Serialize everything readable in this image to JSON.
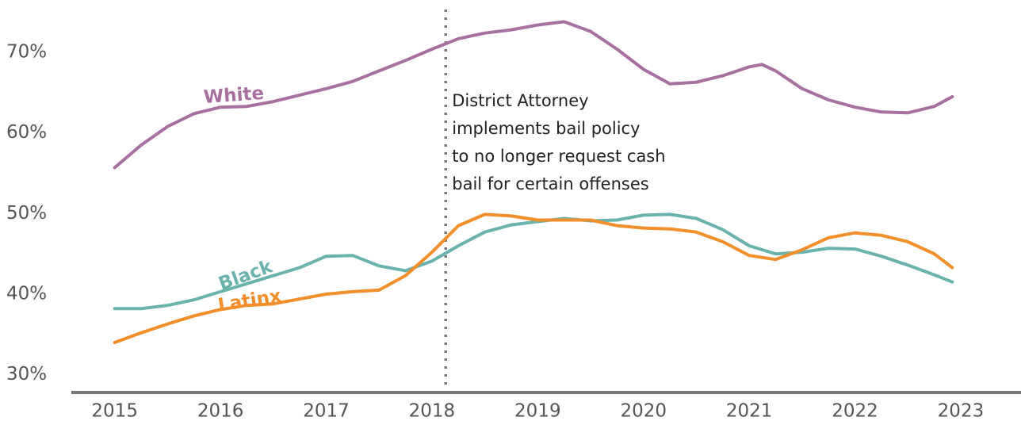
{
  "chart_data": {
    "type": "line",
    "xlim": [
      2014.59,
      2023.57
    ],
    "ylim": [
      27.8,
      76.5
    ],
    "xticks": [
      2015,
      2016,
      2017,
      2018,
      2019,
      2020,
      2021,
      2022,
      2023
    ],
    "yticks": [
      {
        "value": 30,
        "label": "30%"
      },
      {
        "value": 40,
        "label": "40%"
      },
      {
        "value": 50,
        "label": "50%"
      },
      {
        "value": 60,
        "label": "60%"
      },
      {
        "value": 70,
        "label": "70%"
      }
    ],
    "annotation": {
      "x": 2018.13,
      "lines": [
        "District Attorney",
        "implements bail policy",
        "to no longer request cash",
        "bail for certain offenses"
      ]
    },
    "series": [
      {
        "name": "White",
        "color": "#a870a0",
        "x": [
          2015,
          2015.25,
          2015.5,
          2015.75,
          2016,
          2016.25,
          2016.5,
          2016.75,
          2017,
          2017.25,
          2017.5,
          2017.75,
          2018,
          2018.25,
          2018.5,
          2018.75,
          2019,
          2019.25,
          2019.5,
          2019.75,
          2020,
          2020.25,
          2020.5,
          2020.75,
          2021,
          2021.12,
          2021.25,
          2021.5,
          2021.75,
          2022,
          2022.25,
          2022.5,
          2022.75,
          2022.92
        ],
        "values": [
          55.7,
          58.5,
          60.8,
          62.4,
          63.2,
          63.3,
          63.9,
          64.7,
          65.5,
          66.4,
          67.7,
          69.0,
          70.4,
          71.7,
          72.4,
          72.8,
          73.4,
          73.8,
          72.6,
          70.4,
          67.9,
          66.1,
          66.3,
          67.1,
          68.2,
          68.5,
          67.7,
          65.5,
          64.1,
          63.2,
          62.6,
          62.5,
          63.3,
          64.5
        ]
      },
      {
        "name": "Black",
        "color": "#6ab3ad",
        "x": [
          2015,
          2015.25,
          2015.5,
          2015.75,
          2016,
          2016.25,
          2016.5,
          2016.75,
          2017,
          2017.25,
          2017.5,
          2017.75,
          2018,
          2018.25,
          2018.5,
          2018.75,
          2019,
          2019.25,
          2019.5,
          2019.75,
          2020,
          2020.25,
          2020.5,
          2020.75,
          2021,
          2021.25,
          2021.5,
          2021.75,
          2022,
          2022.25,
          2022.5,
          2022.75,
          2022.92
        ],
        "values": [
          38.2,
          38.2,
          38.6,
          39.3,
          40.3,
          41.3,
          42.3,
          43.3,
          44.7,
          44.8,
          43.5,
          42.9,
          44.1,
          46.0,
          47.7,
          48.6,
          49.0,
          49.4,
          49.1,
          49.2,
          49.8,
          49.9,
          49.4,
          48.0,
          46.0,
          45.0,
          45.2,
          45.7,
          45.6,
          44.7,
          43.6,
          42.4,
          41.5
        ]
      },
      {
        "name": "Latinx",
        "color": "#f28e2b",
        "x": [
          2015,
          2015.25,
          2015.5,
          2015.75,
          2016,
          2016.25,
          2016.5,
          2016.75,
          2017,
          2017.25,
          2017.5,
          2017.75,
          2018,
          2018.25,
          2018.5,
          2018.75,
          2019,
          2019.25,
          2019.5,
          2019.75,
          2020,
          2020.25,
          2020.5,
          2020.75,
          2021,
          2021.25,
          2021.5,
          2021.75,
          2022,
          2022.25,
          2022.5,
          2022.75,
          2022.92
        ],
        "values": [
          34.0,
          35.2,
          36.3,
          37.3,
          38.1,
          38.6,
          38.8,
          39.4,
          40.0,
          40.3,
          40.5,
          42.3,
          45.2,
          48.5,
          49.9,
          49.7,
          49.2,
          49.2,
          49.2,
          48.5,
          48.2,
          48.1,
          47.7,
          46.5,
          44.8,
          44.3,
          45.5,
          47.0,
          47.6,
          47.3,
          46.5,
          45.0,
          43.3
        ]
      }
    ]
  }
}
